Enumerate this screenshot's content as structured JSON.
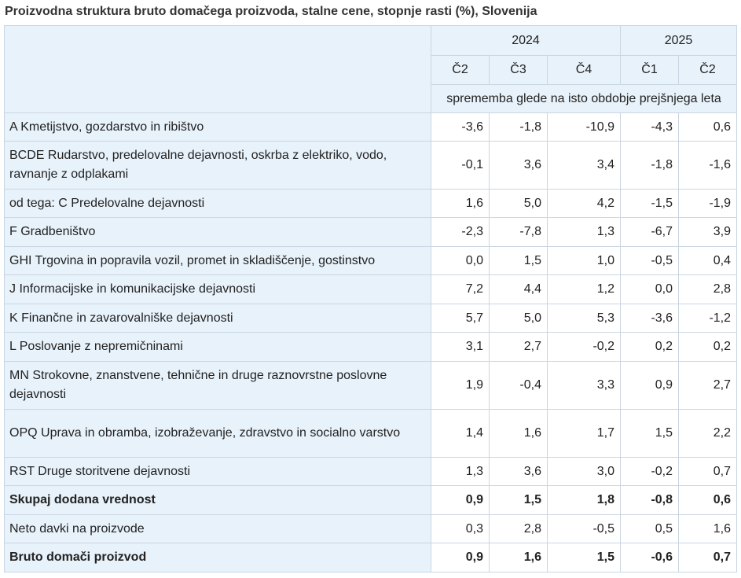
{
  "title": "Proizvodna struktura bruto domačega proizvoda, stalne cene, stopnje rasti (%), Slovenija",
  "header": {
    "years": [
      {
        "label": "2024"
      },
      {
        "label": "2025"
      }
    ],
    "quarters": [
      "Č2",
      "Č3",
      "Č4",
      "Č1",
      "Č2"
    ],
    "unit_note": "sprememba glede na isto obdobje prejšnjega leta"
  },
  "rows": [
    {
      "label": "A Kmetijstvo, gozdarstvo in ribištvo",
      "values": [
        "-3,6",
        "-1,8",
        "-10,9",
        "-4,3",
        "0,6"
      ],
      "bold": false
    },
    {
      "label": "BCDE Rudarstvo, predelovalne dejavnosti, oskrba z elektriko, vodo, ravnanje z odplakami",
      "values": [
        "-0,1",
        "3,6",
        "3,4",
        "-1,8",
        "-1,6"
      ],
      "bold": false
    },
    {
      "label": "od tega: C Predelovalne dejavnosti",
      "values": [
        "1,6",
        "5,0",
        "4,2",
        "-1,5",
        "-1,9"
      ],
      "bold": false
    },
    {
      "label": "F Gradbeništvo",
      "values": [
        "-2,3",
        "-7,8",
        "1,3",
        "-6,7",
        "3,9"
      ],
      "bold": false
    },
    {
      "label": "GHI Trgovina in popravila vozil, promet in skladiščenje, gostinstvo",
      "values": [
        "0,0",
        "1,5",
        "1,0",
        "-0,5",
        "0,4"
      ],
      "bold": false
    },
    {
      "label": "J Informacijske in komunikacijske dejavnosti",
      "values": [
        "7,2",
        "4,4",
        "1,2",
        "0,0",
        "2,8"
      ],
      "bold": false
    },
    {
      "label": "K Finančne in zavarovalniške dejavnosti",
      "values": [
        "5,7",
        "5,0",
        "5,3",
        "-3,6",
        "-1,2"
      ],
      "bold": false
    },
    {
      "label": "L Poslovanje z nepremičninami",
      "values": [
        "3,1",
        "2,7",
        "-0,2",
        "0,2",
        "0,2"
      ],
      "bold": false
    },
    {
      "label": "MN Strokovne, znanstvene, tehnične in druge raznovrstne poslovne dejavnosti",
      "values": [
        "1,9",
        "-0,4",
        "3,3",
        "0,9",
        "2,7"
      ],
      "bold": false
    },
    {
      "label": "OPQ Uprava in obramba, izobraževanje, zdravstvo in socialno varstvo",
      "values": [
        "1,4",
        "1,6",
        "1,7",
        "1,5",
        "2,2"
      ],
      "bold": false
    },
    {
      "label": "RST Druge storitvene dejavnosti",
      "values": [
        "1,3",
        "3,6",
        "3,0",
        "-0,2",
        "0,7"
      ],
      "bold": false
    },
    {
      "label": "Skupaj dodana vrednost",
      "values": [
        "0,9",
        "1,5",
        "1,8",
        "-0,8",
        "0,6"
      ],
      "bold": true
    },
    {
      "label": "Neto davki na proizvode",
      "values": [
        "0,3",
        "2,8",
        "-0,5",
        "0,5",
        "1,6"
      ],
      "bold": false
    },
    {
      "label": "Bruto domači proizvod",
      "values": [
        "0,9",
        "1,6",
        "1,5",
        "-0,6",
        "0,7"
      ],
      "bold": true
    }
  ]
}
